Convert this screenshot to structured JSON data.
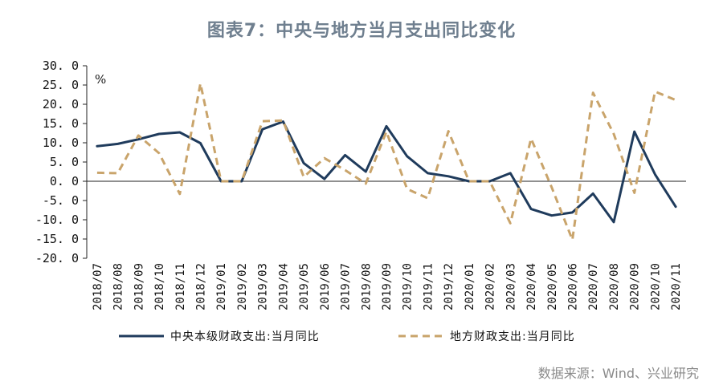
{
  "title": "图表7：中央与地方当月支出同比变化",
  "source": "数据来源：Wind、兴业研究",
  "chart_data": {
    "type": "line",
    "title": "图表7：中央与地方当月支出同比变化",
    "unit": "%",
    "xlabel": "",
    "ylabel": "",
    "ylim": [
      -20,
      30
    ],
    "yticks": [
      "30. 0",
      "25. 0",
      "20. 0",
      "15. 0",
      "10. 0",
      "5. 0",
      "0. 0",
      "-5. 0",
      "-10. 0",
      "-15. 0",
      "-20. 0"
    ],
    "grid": false,
    "legend_position": "bottom",
    "categories": [
      "2018/07",
      "2018/08",
      "2018/09",
      "2018/10",
      "2018/11",
      "2018/12",
      "2019/01",
      "2019/02",
      "2019/03",
      "2019/04",
      "2019/05",
      "2019/06",
      "2019/07",
      "2019/08",
      "2019/09",
      "2019/10",
      "2019/11",
      "2019/12",
      "2020/01",
      "2020/02",
      "2020/03",
      "2020/04",
      "2020/05",
      "2020/06",
      "2020/07",
      "2020/08",
      "2020/09",
      "2020/10",
      "2020/11"
    ],
    "series": [
      {
        "name": "中央本级财政支出:当月同比",
        "color": "#1f3b5c",
        "style": "solid",
        "values": [
          9.1,
          9.7,
          10.9,
          12.3,
          12.7,
          9.9,
          0.0,
          0.0,
          13.5,
          15.5,
          4.7,
          0.6,
          6.8,
          2.5,
          14.3,
          6.5,
          2.1,
          1.3,
          0.0,
          0.0,
          2.1,
          -7.2,
          -8.9,
          -8.1,
          -3.2,
          -10.6,
          12.9,
          1.8,
          -6.6
        ]
      },
      {
        "name": "地方财政支出:当月同比",
        "color": "#c9a46b",
        "style": "dashed",
        "values": [
          2.2,
          2.1,
          11.9,
          7.3,
          -3.3,
          25.4,
          0.0,
          0.0,
          15.6,
          15.8,
          1.1,
          6.0,
          2.9,
          -0.6,
          12.9,
          -2.0,
          -4.4,
          13.0,
          0.0,
          0.0,
          -10.9,
          11.1,
          -1.6,
          -15.2,
          23.0,
          12.3,
          -3.0,
          23.3,
          21.1
        ]
      }
    ]
  }
}
